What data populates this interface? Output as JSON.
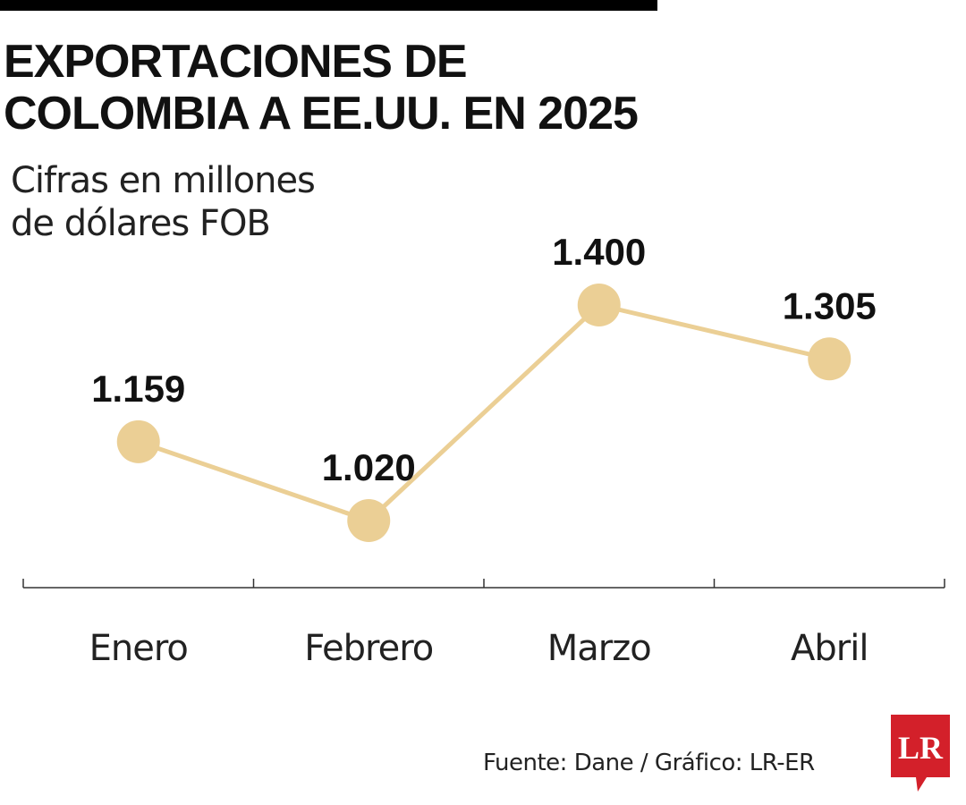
{
  "title": {
    "line1": "EXPORTACIONES DE",
    "line2": "COLOMBIA A EE.UU. EN 2025"
  },
  "subtitle": {
    "line1": "Cifras en millones",
    "line2": "de dólares FOB"
  },
  "source": "Fuente: Dane / Gráfico: LR-ER",
  "logo": {
    "text": "LR",
    "color": "#d3202a"
  },
  "colors": {
    "line": "#ebcf95",
    "marker": "#ebcf95",
    "axis": "#333333",
    "text": "#111111"
  },
  "chart_data": {
    "type": "line",
    "categories": [
      "Enero",
      "Febrero",
      "Marzo",
      "Abril"
    ],
    "values": [
      1159,
      1020,
      1400,
      1305
    ],
    "value_labels": [
      "1.159",
      "1.020",
      "1.400",
      "1.305"
    ],
    "title": "EXPORTACIONES DE COLOMBIA A EE.UU. EN 2025",
    "subtitle": "Cifras en millones de dólares FOB",
    "xlabel": "",
    "ylabel": "",
    "grid": false,
    "legend": "none"
  }
}
